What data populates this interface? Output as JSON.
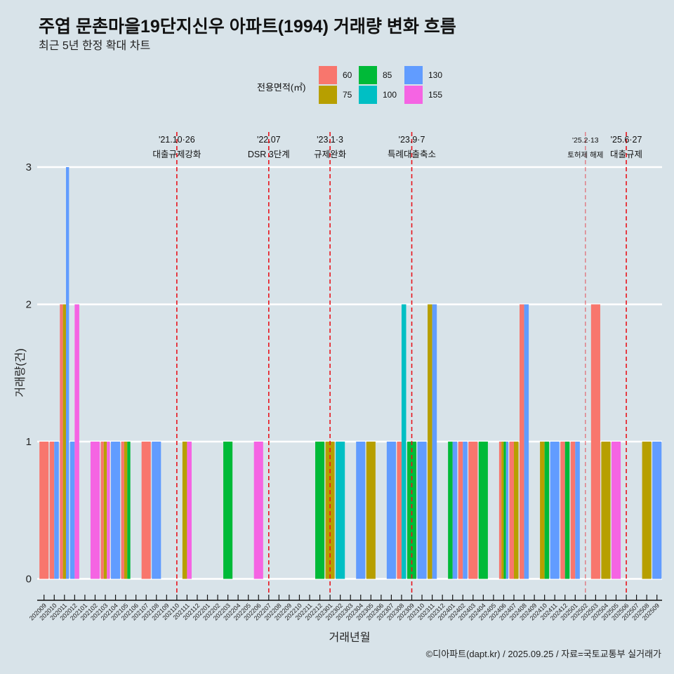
{
  "header": {
    "title": "주엽 문촌마을19단지신우 아파트(1994) 거래량 변화 흐름",
    "subtitle": "최근 5년 한정 확대 차트"
  },
  "footer": {
    "credit": "©디아파트(dapt.kr) / 2025.09.25 / 자료=국토교통부 실거래가"
  },
  "chart_data": {
    "type": "bar",
    "bar_mode": "dodge",
    "title": "주엽 문촌마을19단지신우 아파트(1994) 거래량 변화 흐름",
    "subtitle": "최근 5년 한정 확대 차트",
    "xlabel": "거래년월",
    "ylabel": "거래량(건)",
    "ylim": [
      0,
      3
    ],
    "yticks": [
      0,
      1,
      2,
      3
    ],
    "grid": true,
    "legend": {
      "title": "전용면적(㎡)",
      "placement": "top",
      "entries": [
        "60",
        "75",
        "85",
        "100",
        "130",
        "155"
      ]
    },
    "categories": [
      "202009",
      "202010",
      "202011",
      "202012",
      "202101",
      "202102",
      "202103",
      "202104",
      "202105",
      "202106",
      "202107",
      "202108",
      "202109",
      "202110",
      "202111",
      "202112",
      "202201",
      "202202",
      "202203",
      "202204",
      "202205",
      "202206",
      "202207",
      "202208",
      "202209",
      "202210",
      "202211",
      "202212",
      "202301",
      "202302",
      "202303",
      "202304",
      "202305",
      "202306",
      "202307",
      "202308",
      "202309",
      "202310",
      "202311",
      "202312",
      "202401",
      "202402",
      "202403",
      "202404",
      "202405",
      "202406",
      "202407",
      "202408",
      "202409",
      "202410",
      "202411",
      "202412",
      "202501",
      "202502",
      "202503",
      "202504",
      "202505",
      "202506",
      "202507",
      "202508",
      "202509"
    ],
    "series": [
      {
        "name": "60",
        "color": "#F8766D",
        "values": [
          1,
          1,
          2,
          0,
          0,
          0,
          1,
          0,
          1,
          0,
          1,
          0,
          0,
          0,
          0,
          0,
          0,
          0,
          0,
          0,
          0,
          0,
          0,
          0,
          0,
          0,
          0,
          0,
          0,
          0,
          0,
          0,
          0,
          0,
          0,
          1,
          0,
          0,
          0,
          0,
          0,
          1,
          1,
          0,
          0,
          1,
          1,
          2,
          0,
          0,
          0,
          1,
          1,
          0,
          2,
          0,
          0,
          0,
          0,
          0,
          0
        ]
      },
      {
        "name": "75",
        "color": "#B79F00",
        "values": [
          0,
          0,
          2,
          0,
          0,
          0,
          1,
          0,
          1,
          0,
          0,
          0,
          0,
          0,
          1,
          0,
          0,
          0,
          0,
          0,
          0,
          0,
          0,
          0,
          0,
          0,
          0,
          0,
          1,
          0,
          0,
          0,
          1,
          0,
          0,
          0,
          0,
          0,
          2,
          0,
          0,
          0,
          0,
          0,
          0,
          1,
          1,
          0,
          0,
          1,
          0,
          0,
          0,
          0,
          0,
          1,
          0,
          0,
          0,
          1,
          0
        ]
      },
      {
        "name": "85",
        "color": "#00BA38",
        "values": [
          0,
          0,
          0,
          0,
          0,
          0,
          0,
          0,
          1,
          0,
          0,
          0,
          0,
          0,
          0,
          0,
          0,
          0,
          1,
          0,
          0,
          0,
          0,
          0,
          0,
          0,
          0,
          1,
          0,
          0,
          0,
          0,
          0,
          0,
          0,
          0,
          1,
          0,
          0,
          0,
          1,
          0,
          0,
          1,
          0,
          1,
          0,
          0,
          0,
          1,
          0,
          1,
          0,
          0,
          0,
          0,
          0,
          0,
          0,
          0,
          0
        ]
      },
      {
        "name": "100",
        "color": "#00BFC4",
        "values": [
          0,
          0,
          0,
          0,
          0,
          0,
          0,
          0,
          0,
          0,
          0,
          0,
          0,
          0,
          0,
          0,
          0,
          0,
          0,
          0,
          0,
          0,
          0,
          0,
          0,
          0,
          0,
          0,
          0,
          1,
          0,
          0,
          0,
          0,
          0,
          2,
          0,
          0,
          0,
          0,
          0,
          0,
          0,
          0,
          0,
          0,
          0,
          0,
          0,
          0,
          0,
          0,
          0,
          0,
          0,
          0,
          0,
          0,
          0,
          0,
          0
        ]
      },
      {
        "name": "130",
        "color": "#619CFF",
        "values": [
          0,
          1,
          3,
          1,
          0,
          0,
          0,
          1,
          0,
          0,
          0,
          1,
          0,
          0,
          0,
          0,
          0,
          0,
          0,
          0,
          0,
          0,
          0,
          0,
          0,
          0,
          0,
          0,
          0,
          0,
          0,
          1,
          0,
          0,
          1,
          0,
          0,
          1,
          2,
          0,
          1,
          1,
          0,
          0,
          0,
          1,
          0,
          2,
          0,
          0,
          1,
          0,
          1,
          0,
          0,
          0,
          0,
          0,
          0,
          0,
          1
        ]
      },
      {
        "name": "155",
        "color": "#F564E3",
        "values": [
          0,
          0,
          0,
          2,
          0,
          1,
          1,
          0,
          0,
          0,
          0,
          0,
          0,
          0,
          1,
          0,
          0,
          0,
          0,
          0,
          0,
          1,
          0,
          0,
          0,
          0,
          0,
          0,
          0,
          0,
          0,
          0,
          0,
          0,
          0,
          0,
          0,
          0,
          0,
          0,
          0,
          0,
          0,
          0,
          0,
          0,
          0,
          0,
          0,
          0,
          0,
          0,
          0,
          0,
          0,
          0,
          1,
          0,
          0,
          0,
          0
        ]
      }
    ],
    "events": [
      {
        "month": "202110",
        "date": "'21.10·26",
        "label": "대출규제강화",
        "minor": false
      },
      {
        "month": "202207",
        "date": "'22.07",
        "label": "DSR 3단계",
        "minor": false
      },
      {
        "month": "202301",
        "date": "'23.1·3",
        "label": "규제완화",
        "minor": false
      },
      {
        "month": "202309",
        "date": "'23.9·7",
        "label": "특례대출축소",
        "minor": false
      },
      {
        "month": "202502",
        "date": "'25.2·13",
        "label": "토허제 해제",
        "minor": true
      },
      {
        "month": "202506",
        "date": "'25.6·27",
        "label": "대출규제",
        "minor": false
      }
    ],
    "event_line_color": "#E8141C"
  }
}
